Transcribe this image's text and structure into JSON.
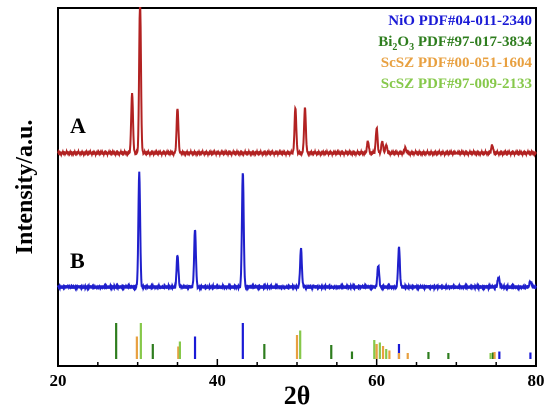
{
  "chart_data": {
    "type": "line",
    "xlabel": "2θ",
    "ylabel": "Intensity/a.u.",
    "xlim": [
      20,
      80
    ],
    "xticks": [
      "20",
      "40",
      "60",
      "80"
    ],
    "grid": false,
    "legend_position": "top-right",
    "samples": [
      {
        "name": "A",
        "color": "#b22222",
        "peaks": [
          [
            29.3,
            0.6
          ],
          [
            30.3,
            1.55
          ],
          [
            35.0,
            0.45
          ],
          [
            49.8,
            0.45
          ],
          [
            51.0,
            0.45
          ],
          [
            58.9,
            0.12
          ],
          [
            60.0,
            0.25
          ],
          [
            60.7,
            0.12
          ],
          [
            61.2,
            0.08
          ],
          [
            63.6,
            0.05
          ],
          [
            74.5,
            0.08
          ]
        ]
      },
      {
        "name": "B",
        "color": "#1f1fcc",
        "peaks": [
          [
            30.2,
            0.78
          ],
          [
            35.0,
            0.22
          ],
          [
            37.2,
            0.39
          ],
          [
            43.2,
            0.78
          ],
          [
            50.5,
            0.26
          ],
          [
            60.2,
            0.15
          ],
          [
            62.8,
            0.27
          ],
          [
            75.3,
            0.07
          ],
          [
            79.3,
            0.04
          ]
        ]
      }
    ],
    "references": [
      {
        "name": "NiO PDF#04-011-2340",
        "color": "#1a1ad6",
        "lines": [
          [
            37.2,
            0.45
          ],
          [
            43.2,
            0.72
          ],
          [
            62.8,
            0.3
          ],
          [
            75.4,
            0.15
          ],
          [
            79.3,
            0.13
          ]
        ]
      },
      {
        "name": "Bi2O3 PDF#97-017-3834",
        "color": "#2e7d1e",
        "lines": [
          [
            27.3,
            0.72
          ],
          [
            31.9,
            0.3
          ],
          [
            45.9,
            0.3
          ],
          [
            54.3,
            0.28
          ],
          [
            56.9,
            0.15
          ],
          [
            66.5,
            0.14
          ],
          [
            69.0,
            0.12
          ],
          [
            74.6,
            0.13
          ]
        ]
      },
      {
        "name": "ScSZ PDF#00-051-1604",
        "color": "#e8a040",
        "lines": [
          [
            29.9,
            0.45
          ],
          [
            35.1,
            0.25
          ],
          [
            50.0,
            0.48
          ],
          [
            60.0,
            0.3
          ],
          [
            60.8,
            0.26
          ],
          [
            61.6,
            0.17
          ],
          [
            62.8,
            0.12
          ],
          [
            63.9,
            0.12
          ],
          [
            74.8,
            0.14
          ]
        ]
      },
      {
        "name": "ScSZ PDF#97-009-2133",
        "color": "#86c84a",
        "lines": [
          [
            30.4,
            0.72
          ],
          [
            35.3,
            0.35
          ],
          [
            50.4,
            0.57
          ],
          [
            59.7,
            0.38
          ],
          [
            60.4,
            0.33
          ],
          [
            61.2,
            0.2
          ],
          [
            74.3,
            0.12
          ]
        ]
      }
    ]
  },
  "legend": [
    {
      "text": "NiO PDF#04-011-2340",
      "color": "#1a1ad6"
    },
    {
      "pre": "Bi",
      "sub1": "2",
      "mid": "O",
      "sub2": "3",
      "post": " PDF#97-017-3834",
      "color": "#2e7d1e"
    },
    {
      "text": "ScSZ PDF#00-051-1604",
      "color": "#e8a040"
    },
    {
      "text": "ScSZ PDF#97-009-2133",
      "color": "#86c84a"
    }
  ]
}
